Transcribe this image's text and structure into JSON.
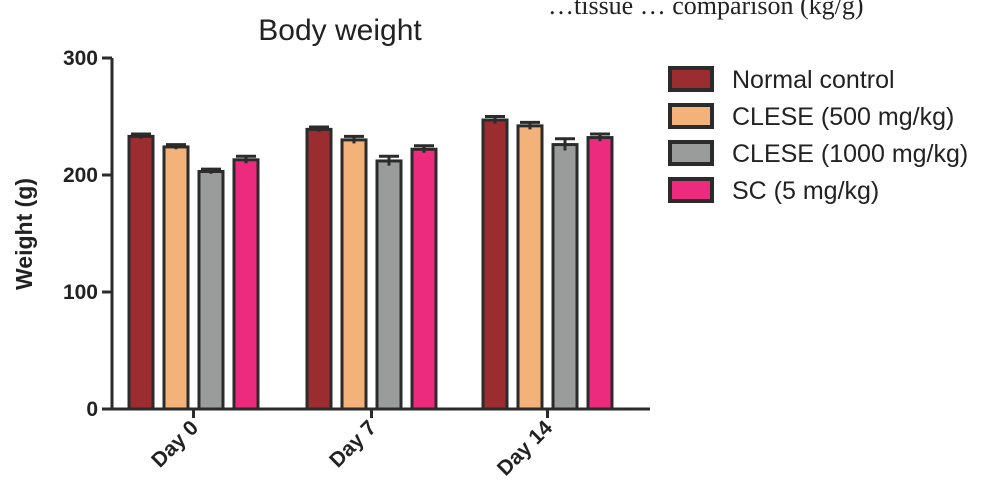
{
  "top_text": "…tissue … comparison (kg/g)",
  "chart_data": {
    "type": "bar",
    "title": "Body weight",
    "xlabel": "",
    "ylabel": "Weight (g)",
    "ylim": [
      0,
      300
    ],
    "yticks": [
      "0",
      "100",
      "200",
      "300"
    ],
    "categories": [
      "Day 0",
      "Day 7",
      "Day 14"
    ],
    "series": [
      {
        "name": "Normal control",
        "color": "#9b2d30",
        "values": [
          233,
          239,
          247
        ],
        "errors": [
          2,
          2,
          3
        ]
      },
      {
        "name": "CLESE (500 mg/kg)",
        "color": "#f2b27a",
        "values": [
          224,
          230,
          242
        ],
        "errors": [
          2,
          3,
          3
        ]
      },
      {
        "name": "CLESE (1000 mg/kg)",
        "color": "#9a9c9c",
        "values": [
          203,
          212,
          226
        ],
        "errors": [
          2,
          4,
          5
        ]
      },
      {
        "name": "SC (5 mg/kg)",
        "color": "#ec2a7e",
        "values": [
          213,
          222,
          232
        ],
        "errors": [
          3,
          3,
          3
        ]
      }
    ],
    "grid": false,
    "legend": "right",
    "error_bars": true
  }
}
